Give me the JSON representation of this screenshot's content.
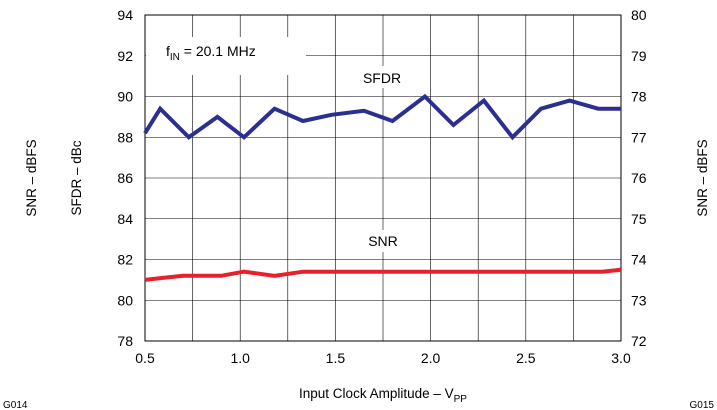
{
  "chart_data": {
    "type": "line",
    "xlabel": {
      "main": "Input Clock Amplitude – V",
      "sub": "PP"
    },
    "ylabel_left_outer": "SNR – dBFS",
    "ylabel_left_inner": "SFDR – dBc",
    "ylabel_right": "SNR – dBFS",
    "annotation": {
      "prefix": "f",
      "sub": "IN",
      "suffix": " = 20.1 MHz"
    },
    "xlim": [
      0.5,
      3.0
    ],
    "ylim_left": [
      78,
      94
    ],
    "ylim_right": [
      72,
      80
    ],
    "x_ticks": [
      "0.5",
      "1.0",
      "1.5",
      "2.0",
      "2.5",
      "3.0"
    ],
    "y_ticks_left": [
      "78",
      "80",
      "82",
      "84",
      "86",
      "88",
      "90",
      "92",
      "94"
    ],
    "y_ticks_right": [
      "72",
      "73",
      "74",
      "75",
      "76",
      "77",
      "78",
      "79",
      "80"
    ],
    "grid": true,
    "figure_codes": {
      "left": "G014",
      "right": "G015"
    },
    "series": [
      {
        "name": "SFDR",
        "axis": "left",
        "color": "#2b2f8f",
        "x": [
          0.5,
          0.58,
          0.73,
          0.88,
          1.02,
          1.18,
          1.33,
          1.48,
          1.65,
          1.8,
          1.97,
          2.12,
          2.28,
          2.43,
          2.58,
          2.73,
          2.88,
          3.0
        ],
        "y": [
          88.2,
          89.4,
          88.0,
          89.0,
          88.0,
          89.4,
          88.8,
          89.1,
          89.3,
          88.8,
          90.0,
          88.6,
          89.8,
          88.0,
          89.4,
          89.8,
          89.4,
          89.4
        ]
      },
      {
        "name": "SNR",
        "axis": "right",
        "color": "#e8202a",
        "x": [
          0.5,
          0.6,
          0.7,
          0.8,
          0.9,
          1.02,
          1.18,
          1.33,
          1.5,
          2.0,
          2.5,
          2.9,
          3.0
        ],
        "y": [
          73.5,
          73.55,
          73.6,
          73.6,
          73.6,
          73.7,
          73.6,
          73.7,
          73.7,
          73.7,
          73.7,
          73.7,
          73.75
        ]
      }
    ]
  }
}
